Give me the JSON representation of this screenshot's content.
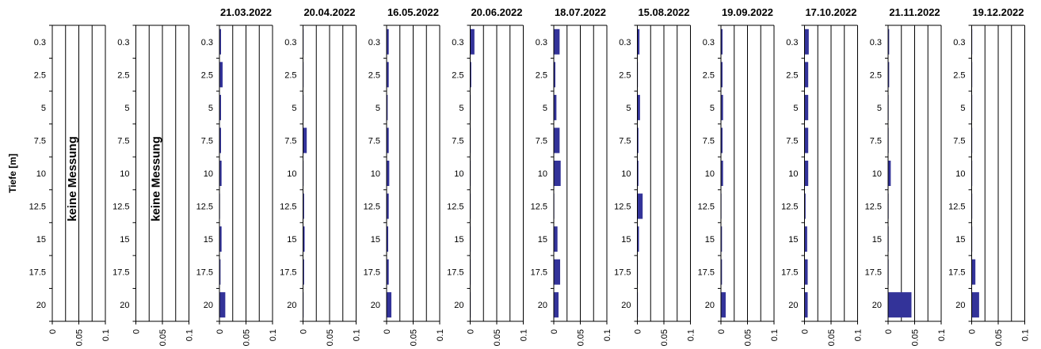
{
  "chart_data": {
    "type": "bar",
    "orientation": "horizontal",
    "ylabel": "Tiefe [m]",
    "depths": [
      "0.3",
      "2.5",
      "5",
      "7.5",
      "10",
      "12.5",
      "15",
      "17.5",
      "20"
    ],
    "xlim": [
      0,
      0.1
    ],
    "xticks": [
      "0",
      "0.05",
      "0.1"
    ],
    "bar_color": "#333399",
    "panels": [
      {
        "title": "",
        "note": "keine Messung",
        "values": []
      },
      {
        "title": "",
        "note": "keine Messung",
        "values": []
      },
      {
        "title": "21.03.2022",
        "note": "",
        "values": [
          0.003,
          0.006,
          0.003,
          0.003,
          0.004,
          0.001,
          0.004,
          0.002,
          0.011
        ]
      },
      {
        "title": "20.04.2022",
        "note": "",
        "values": [
          0.001,
          0.001,
          0.001,
          0.007,
          0.001,
          0.002,
          0.003,
          0.002,
          0.001
        ]
      },
      {
        "title": "16.05.2022",
        "note": "",
        "values": [
          0.004,
          0.004,
          0.002,
          0.004,
          0.005,
          0.004,
          0.003,
          0.004,
          0.009
        ]
      },
      {
        "title": "20.06.2022",
        "note": "",
        "values": [
          0.008,
          0.002,
          0.001,
          0.001,
          0.001,
          0.001,
          0.001,
          0.001,
          0.001
        ]
      },
      {
        "title": "18.07.2022",
        "note": "",
        "values": [
          0.011,
          0.003,
          0.005,
          0.011,
          0.013,
          0.001,
          0.007,
          0.012,
          0.009
        ]
      },
      {
        "title": "15.08.2022",
        "note": "",
        "values": [
          0.004,
          0.001,
          0.005,
          0.002,
          0.002,
          0.01,
          0.003,
          0.001,
          0.001
        ]
      },
      {
        "title": "19.09.2022",
        "note": "",
        "values": [
          0.003,
          0.003,
          0.004,
          0.003,
          0.004,
          0.001,
          0.002,
          0.002,
          0.009
        ]
      },
      {
        "title": "17.10.2022",
        "note": "",
        "values": [
          0.008,
          0.007,
          0.007,
          0.007,
          0.007,
          0.002,
          0.005,
          0.006,
          0.006
        ]
      },
      {
        "title": "21.11.2022",
        "note": "",
        "values": [
          0.002,
          0.002,
          0.001,
          0.001,
          0.005,
          0.001,
          0.001,
          0.001,
          0.044
        ]
      },
      {
        "title": "19.12.2022",
        "note": "",
        "values": [
          0.001,
          0.001,
          0.001,
          0.001,
          0.001,
          0.001,
          0.001,
          0.007,
          0.014
        ]
      }
    ]
  }
}
